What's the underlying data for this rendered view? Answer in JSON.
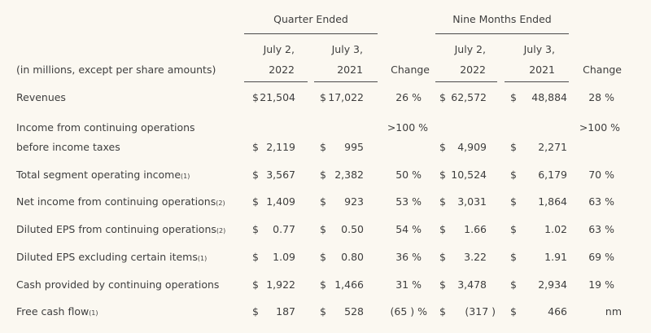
{
  "header": {
    "group_quarter": "Quarter Ended",
    "group_nine": "Nine Months Ended",
    "q_col1": [
      "July 2,",
      "2022"
    ],
    "q_col2": [
      "July 3,",
      "2021"
    ],
    "q_change": "Change",
    "n_col1": [
      "July 2,",
      "2022"
    ],
    "n_col2": [
      "July 3,",
      "2021"
    ],
    "n_change": "Change",
    "units_label": "(in millions, except per share amounts)"
  },
  "rows": [
    {
      "label": "Revenues",
      "sub": "",
      "qd1": "$",
      "q1": "21,504",
      "qd2": "$",
      "q2": "17,022",
      "qc": "26 %",
      "nd1": "$",
      "n1": "62,572",
      "nd2": "$",
      "n2": "48,884",
      "nc": "28 %"
    },
    {
      "label": "Income from continuing operations",
      "label2": "before income taxes",
      "sub": "",
      "qd1": "$",
      "q1": "2,119",
      "qd2": "$",
      "q2": "995",
      "qc": ">100 %",
      "nd1": "$",
      "n1": "4,909",
      "nd2": "$",
      "n2": "2,271",
      "nc": ">100 %"
    },
    {
      "label": "Total segment operating income",
      "sub": "(1)",
      "qd1": "$",
      "q1": "3,567",
      "qd2": "$",
      "q2": "2,382",
      "qc": "50 %",
      "nd1": "$",
      "n1": "10,524",
      "nd2": "$",
      "n2": "6,179",
      "nc": "70 %"
    },
    {
      "label": "Net income from continuing operations",
      "sub": "(2)",
      "qd1": "$",
      "q1": "1,409",
      "qd2": "$",
      "q2": "923",
      "qc": "53 %",
      "nd1": "$",
      "n1": "3,031",
      "nd2": "$",
      "n2": "1,864",
      "nc": "63 %"
    },
    {
      "label": "Diluted EPS from continuing operations",
      "sub": "(2)",
      "qd1": "$",
      "q1": "0.77",
      "qd2": "$",
      "q2": "0.50",
      "qc": "54 %",
      "nd1": "$",
      "n1": "1.66",
      "nd2": "$",
      "n2": "1.02",
      "nc": "63 %"
    },
    {
      "label": "Diluted EPS excluding certain items",
      "sub": "(1)",
      "qd1": "$",
      "q1": "1.09",
      "qd2": "$",
      "q2": "0.80",
      "qc": "36 %",
      "nd1": "$",
      "n1": "3.22",
      "nd2": "$",
      "n2": "1.91",
      "nc": "69 %"
    },
    {
      "label": "Cash provided by continuing operations",
      "sub": "",
      "qd1": "$",
      "q1": "1,922",
      "qd2": "$",
      "q2": "1,466",
      "qc": "31 %",
      "nd1": "$",
      "n1": "3,478",
      "nd2": "$",
      "n2": "2,934",
      "nc": "19 %"
    },
    {
      "label": "Free cash flow",
      "sub": "(1)",
      "qd1": "$",
      "q1": "187",
      "qd2": "$",
      "q2": "528",
      "qc": "(65 ) %",
      "nd1": "$",
      "n1": "(317 )",
      "nd2": "$",
      "n2": "466",
      "nc": "nm"
    }
  ]
}
